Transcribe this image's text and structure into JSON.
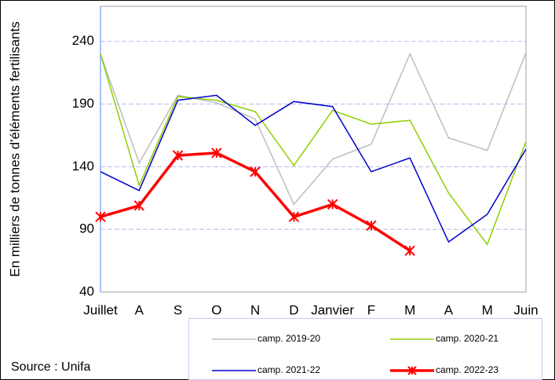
{
  "chart_data": {
    "type": "line",
    "y_label": "En milliers de tonnes d'éléments fertilisants",
    "source": "Source : Unifa",
    "categories": [
      "Juillet",
      "A",
      "S",
      "O",
      "N",
      "D",
      "Janvier",
      "F",
      "M",
      "A",
      "M",
      "Juin"
    ],
    "ylim": [
      40,
      268
    ],
    "yticks": [
      40,
      90,
      140,
      190,
      240
    ],
    "grid": true,
    "series": [
      {
        "name": "camp. 2019-20",
        "color": "#bdbdbd",
        "values": [
          230,
          143,
          197,
          191,
          178,
          110,
          146,
          158,
          230,
          163,
          153,
          231
        ]
      },
      {
        "name": "camp. 2020-21",
        "color": "#8fce00",
        "values": [
          230,
          125,
          196,
          193,
          184,
          141,
          185,
          174,
          177,
          119,
          78,
          160
        ]
      },
      {
        "name": "camp. 2021-22",
        "color": "#0000cc",
        "values": [
          136,
          121,
          193,
          197,
          173,
          192,
          188,
          136,
          147,
          80,
          102,
          154
        ]
      },
      {
        "name": "camp. 2022-23",
        "color": "#ff0000",
        "values": [
          100,
          109,
          149,
          151,
          136,
          100,
          110,
          93,
          73,
          null,
          null,
          null
        ],
        "marker": "asterisk"
      }
    ]
  }
}
